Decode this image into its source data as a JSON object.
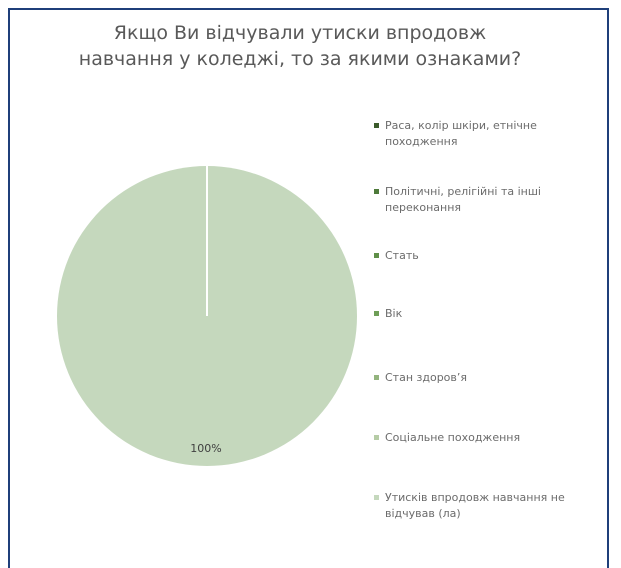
{
  "chart_data": {
    "type": "pie",
    "title": "Якщо Ви відчували утиски впродовж\nнавчання у коледжі, то за якими ознаками?",
    "categories": [
      "Раса, колір шкіри, етнічне походження",
      "Політичні, релігійні та інші переконання",
      "Стать",
      "Вік",
      "Стан здоров’я",
      "Соціальне походження",
      "Утисків впродовж навчання не відчував (ла)"
    ],
    "values": [
      0,
      0,
      0,
      0,
      0,
      0,
      100
    ],
    "data_labels": [
      "",
      "",
      "",
      "",
      "",
      "",
      "100%"
    ],
    "colors": [
      "#3b5b2b",
      "#4e7a3a",
      "#5f8f48",
      "#6e9e57",
      "#93b47e",
      "#b6cca6",
      "#c5d8bd"
    ],
    "legend_position": "right",
    "grid": false
  }
}
